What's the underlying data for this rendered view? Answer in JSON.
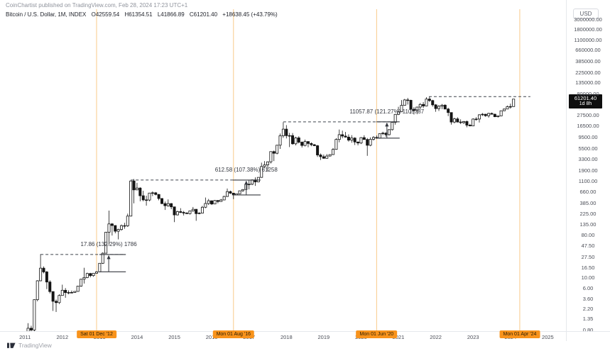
{
  "header": {
    "published_line": "CoinChartist published on TradingView.com, Feb 28, 2024 17:23 UTC+1",
    "symbol": "Bitcoin / U.S. Dollar, 1M, INDEX",
    "open": "O42559.54",
    "high": "H61354.51",
    "low": "L41866.89",
    "close": "C61201.40",
    "change": "+18638.45 (+43.79%)"
  },
  "price_axis": {
    "currency_label": "USD",
    "ticks": [
      "3000000.00",
      "1800000.00",
      "1100000.00",
      "660000.00",
      "385000.00",
      "225000.00",
      "135000.00",
      "80000.00",
      "27500.00",
      "16500.00",
      "9500.00",
      "5500.00",
      "3300.00",
      "1900.00",
      "1100.00",
      "660.00",
      "385.00",
      "225.00",
      "135.00",
      "80.00",
      "47.50",
      "27.50",
      "16.50",
      "10.00",
      "6.00",
      "3.60",
      "2.20",
      "1.35",
      "0.80"
    ],
    "badge": {
      "price": "61201.40",
      "countdown": "1d 8h",
      "value": 61201.4
    }
  },
  "time_axis": {
    "years": [
      "2011",
      "2012",
      "2013",
      "2014",
      "2015",
      "2016",
      "2017",
      "2018",
      "2019",
      "2020",
      "2021",
      "2022",
      "2023",
      "2024",
      "2025"
    ]
  },
  "watermark": {
    "label": "TradingView"
  },
  "colors": {
    "event_badge_bg": "#F8931C",
    "event_badge_text": "#2b1d02",
    "event_line": "#F6A73C",
    "price_badge_bg": "#0e0e0e",
    "price_badge_text": "#ffffff",
    "candle_up": "#ffffff",
    "candle_down": "#141414",
    "candle_border": "#141414",
    "annotation": "#34373e",
    "dash_line": "#3f434c"
  },
  "chart_data": {
    "type": "candlestick",
    "title": "Bitcoin / U.S. Dollar",
    "interval": "1M",
    "exchange": "INDEX",
    "scale": "logarithmic",
    "start_month": "2011-01",
    "current_price": 61201.4,
    "ohlc": [
      [
        0.3,
        0.53,
        0.29,
        0.46
      ],
      [
        0.46,
        1.1,
        0.46,
        0.86
      ],
      [
        0.86,
        0.97,
        0.71,
        0.79
      ],
      [
        0.79,
        3.5,
        0.7,
        3.46
      ],
      [
        3.46,
        8.95,
        3.2,
        8.7
      ],
      [
        8.7,
        31.9,
        8.5,
        16.1
      ],
      [
        16.1,
        17.5,
        12.5,
        13.4
      ],
      [
        13.4,
        14.0,
        5.8,
        8.2
      ],
      [
        8.2,
        8.9,
        4.7,
        5.14
      ],
      [
        5.14,
        5.2,
        2.0,
        3.2
      ],
      [
        3.2,
        3.5,
        1.9,
        3.0
      ],
      [
        3.0,
        4.5,
        2.8,
        4.25
      ],
      [
        4.25,
        7.2,
        4.2,
        5.48
      ],
      [
        5.48,
        6.1,
        3.8,
        4.89
      ],
      [
        4.89,
        5.45,
        4.5,
        4.92
      ],
      [
        4.92,
        5.4,
        4.72,
        4.93
      ],
      [
        4.93,
        5.2,
        4.85,
        5.18
      ],
      [
        5.18,
        6.8,
        5.15,
        6.7
      ],
      [
        6.7,
        9.5,
        6.5,
        9.4
      ],
      [
        9.4,
        16.4,
        7.6,
        10.2
      ],
      [
        10.2,
        12.9,
        9.9,
        12.4
      ],
      [
        12.4,
        12.8,
        10.3,
        11.2
      ],
      [
        11.2,
        12.6,
        10.6,
        12.56
      ],
      [
        12.56,
        14.0,
        12.4,
        13.45
      ],
      [
        13.45,
        20.6,
        13.2,
        20.41
      ],
      [
        20.41,
        34.8,
        19.8,
        33.38
      ],
      [
        33.38,
        94.0,
        33.0,
        93.03
      ],
      [
        93.03,
        266.0,
        50.0,
        139.23
      ],
      [
        139.23,
        145.0,
        79.0,
        128.8
      ],
      [
        128.8,
        129.8,
        88.0,
        97.5
      ],
      [
        97.5,
        110.0,
        65.5,
        106.2
      ],
      [
        106.2,
        135.0,
        100.0,
        128.0
      ],
      [
        128.0,
        147.0,
        110.0,
        127.0
      ],
      [
        127.0,
        230.0,
        120.0,
        204.0
      ],
      [
        204.0,
        1163.0,
        200.0,
        1130.0
      ],
      [
        1130.0,
        1240.0,
        380.0,
        732.0
      ],
      [
        732,
        1030,
        720,
        800
      ],
      [
        800,
        830,
        420,
        550
      ],
      [
        550,
        700,
        420,
        450
      ],
      [
        450,
        550,
        340,
        446
      ],
      [
        446,
        630,
        420,
        627
      ],
      [
        627,
        680,
        540,
        635
      ],
      [
        635,
        660,
        560,
        585
      ],
      [
        585,
        600,
        440,
        480
      ],
      [
        480,
        490,
        365,
        375
      ],
      [
        375,
        415,
        275,
        338
      ],
      [
        338,
        460,
        320,
        375
      ],
      [
        375,
        385,
        285,
        320
      ],
      [
        320,
        320,
        152,
        216
      ],
      [
        216,
        265,
        210,
        254
      ],
      [
        254,
        300,
        236,
        244
      ],
      [
        244,
        262,
        210,
        236
      ],
      [
        236,
        248,
        225,
        230
      ],
      [
        230,
        268,
        220,
        263
      ],
      [
        263,
        318,
        255,
        284
      ],
      [
        284,
        288,
        162,
        230
      ],
      [
        230,
        246,
        223,
        236
      ],
      [
        236,
        335,
        235,
        314
      ],
      [
        314,
        504,
        300,
        377
      ],
      [
        377,
        470,
        350,
        430
      ],
      [
        430,
        436,
        350,
        368
      ],
      [
        368,
        448,
        365,
        437
      ],
      [
        437,
        440,
        380,
        416
      ],
      [
        416,
        470,
        410,
        448
      ],
      [
        448,
        550,
        440,
        531
      ],
      [
        531,
        780,
        520,
        673
      ],
      [
        673,
        705,
        600,
        624
      ],
      [
        624,
        630,
        465,
        572
      ],
      [
        572,
        610,
        565,
        605
      ],
      [
        605,
        700,
        600,
        700
      ],
      [
        700,
        755,
        670,
        745
      ],
      [
        745,
        980,
        740,
        963
      ],
      [
        963,
        1180,
        750,
        965
      ],
      [
        965,
        1220,
        920,
        1190
      ],
      [
        1190,
        1350,
        890,
        1080
      ],
      [
        1080,
        1347,
        1060,
        1347
      ],
      [
        1347,
        2760,
        1320,
        2286
      ],
      [
        2286,
        2980,
        2100,
        2480
      ],
      [
        2480,
        2920,
        1830,
        2875
      ],
      [
        2875,
        4765,
        2650,
        4735
      ],
      [
        4735,
        4980,
        2980,
        4360
      ],
      [
        4360,
        6480,
        4150,
        6468
      ],
      [
        6468,
        11400,
        5400,
        10233
      ],
      [
        10233,
        19800,
        9250,
        14156
      ],
      [
        14156,
        17200,
        9000,
        10285
      ],
      [
        10285,
        11790,
        5900,
        10320
      ],
      [
        10320,
        11700,
        6600,
        6928
      ],
      [
        6928,
        9750,
        6425,
        9240
      ],
      [
        9240,
        9990,
        7050,
        7490
      ],
      [
        7490,
        7750,
        5770,
        6390
      ],
      [
        6390,
        8500,
        6100,
        7730
      ],
      [
        7730,
        7760,
        5850,
        7030
      ],
      [
        7030,
        7420,
        6150,
        6625
      ],
      [
        6625,
        6850,
        6180,
        6300
      ],
      [
        6300,
        6540,
        3650,
        4015
      ],
      [
        4015,
        4300,
        3150,
        3690
      ],
      [
        3690,
        4100,
        3350,
        3415
      ],
      [
        3415,
        4200,
        3350,
        3815
      ],
      [
        3815,
        4150,
        3700,
        4090
      ],
      [
        4090,
        5630,
        4050,
        5270
      ],
      [
        5270,
        9070,
        5200,
        8560
      ],
      [
        8560,
        13880,
        7450,
        10800
      ],
      [
        10800,
        13150,
        9080,
        10080
      ],
      [
        10080,
        12320,
        9350,
        9590
      ],
      [
        9590,
        10950,
        7700,
        8280
      ],
      [
        8280,
        10540,
        7300,
        9150
      ],
      [
        9150,
        9520,
        6520,
        7550
      ],
      [
        7550,
        7750,
        6420,
        7190
      ],
      [
        7190,
        9570,
        6850,
        9350
      ],
      [
        9350,
        10500,
        8400,
        8540
      ],
      [
        8540,
        9170,
        3850,
        6440
      ],
      [
        6440,
        9460,
        6150,
        8630
      ],
      [
        8630,
        10050,
        8100,
        9450
      ],
      [
        9450,
        10380,
        8830,
        9140
      ],
      [
        9140,
        11450,
        8900,
        11350
      ],
      [
        11350,
        12480,
        10550,
        11650
      ],
      [
        11650,
        12050,
        9800,
        10780
      ],
      [
        10780,
        14100,
        10400,
        13800
      ],
      [
        13800,
        19860,
        13200,
        19700
      ],
      [
        19700,
        29300,
        17600,
        28990
      ],
      [
        28990,
        41950,
        28150,
        33100
      ],
      [
        33100,
        58350,
        32300,
        45160
      ],
      [
        45160,
        61800,
        45000,
        58780
      ],
      [
        58780,
        64850,
        46950,
        57750
      ],
      [
        57750,
        59500,
        30000,
        37330
      ],
      [
        37330,
        41300,
        28800,
        35040
      ],
      [
        35040,
        42230,
        29300,
        41460
      ],
      [
        41460,
        50500,
        37330,
        47130
      ],
      [
        47130,
        52920,
        39600,
        43790
      ],
      [
        43790,
        66950,
        43300,
        61300
      ],
      [
        61300,
        69000,
        53250,
        57000
      ],
      [
        57000,
        59100,
        42330,
        46200
      ],
      [
        46200,
        47990,
        32950,
        38480
      ],
      [
        38480,
        45800,
        34300,
        43190
      ],
      [
        43190,
        48200,
        37550,
        45530
      ],
      [
        45530,
        47450,
        37600,
        37640
      ],
      [
        37640,
        40000,
        26700,
        31790
      ],
      [
        31790,
        31980,
        17600,
        19985
      ],
      [
        19985,
        24670,
        18780,
        23300
      ],
      [
        23300,
        25200,
        19550,
        20050
      ],
      [
        20050,
        22800,
        18150,
        19430
      ],
      [
        19430,
        21080,
        18200,
        20490
      ],
      [
        20490,
        21480,
        15480,
        17165
      ],
      [
        17165,
        18380,
        16270,
        16540
      ],
      [
        16540,
        23950,
        16500,
        23130
      ],
      [
        23130,
        25250,
        21400,
        23140
      ],
      [
        23140,
        29180,
        19550,
        28470
      ],
      [
        28470,
        31050,
        26940,
        29230
      ],
      [
        29230,
        29850,
        25800,
        27220
      ],
      [
        27220,
        31400,
        24800,
        30470
      ],
      [
        30470,
        31800,
        28850,
        29230
      ],
      [
        29230,
        30200,
        25350,
        25930
      ],
      [
        25930,
        27480,
        24900,
        26960
      ],
      [
        26960,
        34700,
        26550,
        34650
      ],
      [
        34650,
        38400,
        34100,
        37710
      ],
      [
        37710,
        44700,
        37600,
        42280
      ],
      [
        42280,
        48970,
        38500,
        42580
      ],
      [
        42559.54,
        61354.51,
        41866.89,
        61201.4
      ]
    ],
    "event_lines": [
      {
        "label": "Sat 01 Dec '12",
        "month_index": 23
      },
      {
        "label": "Mon 01 Aug '16",
        "month_index": 67
      },
      {
        "label": "Mon 01 Jun '20",
        "month_index": 113
      },
      {
        "label": "Mon 01 Apr '24",
        "month_index": 159
      }
    ],
    "measurements": [
      {
        "label": "17.86 (132.29%) 1786",
        "from_price": 13.5,
        "to_price": 31.36,
        "dash_from_month": 5,
        "dash_to_month": 32.2,
        "bracket_from_month": 23.9,
        "bracket_to_month": 32.4,
        "arrow_month": 26.9
      },
      {
        "label": "612.58 (107.38%) 61258",
        "from_price": 570.5,
        "to_price": 1183,
        "dash_from_month": 34,
        "dash_to_month": 67.8,
        "bracket_from_month": 66.8,
        "bracket_to_month": 75.7,
        "arrow_month": 71.1
      },
      {
        "label": "11057.87 (121.27%) 1105787",
        "from_price": 9118.5,
        "to_price": 20176,
        "dash_from_month": 83,
        "dash_to_month": 119.8,
        "bracket_from_month": 112.9,
        "bracket_to_month": 120.4,
        "arrow_month": 116.3
      }
    ],
    "ath_line": {
      "price": 69000,
      "from_month": 129.8,
      "to_month": 162.4
    }
  }
}
